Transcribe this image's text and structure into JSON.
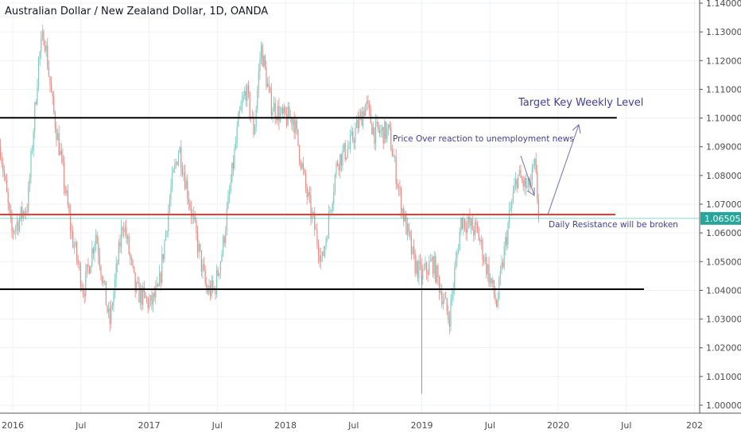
{
  "header": {
    "title": "Australian Dollar / New Zealand Dollar, 1D, OANDA"
  },
  "chart_data": {
    "type": "candlestick",
    "title": "Australian Dollar / New Zealand Dollar, 1D, OANDA",
    "ylim": [
      1.0,
      1.14
    ],
    "y_ticks": [
      "1.14000",
      "1.13000",
      "1.12000",
      "1.11000",
      "1.10000",
      "1.09000",
      "1.08000",
      "1.07000",
      "1.06000",
      "1.05000",
      "1.04000",
      "1.03000",
      "1.02000",
      "1.01000",
      "1.00000"
    ],
    "x_ticks": [
      {
        "label": "2016",
        "t": 2016.0
      },
      {
        "label": "Jul",
        "t": 2016.5
      },
      {
        "label": "2017",
        "t": 2017.0
      },
      {
        "label": "Jul",
        "t": 2017.5
      },
      {
        "label": "2018",
        "t": 2018.0
      },
      {
        "label": "Jul",
        "t": 2018.5
      },
      {
        "label": "2019",
        "t": 2019.0
      },
      {
        "label": "Jul",
        "t": 2019.5
      },
      {
        "label": "2020",
        "t": 2020.0
      },
      {
        "label": "Jul",
        "t": 2020.5
      },
      {
        "label": "202",
        "t": 2021.0
      }
    ],
    "current_price": "1.06505",
    "price_path": [
      [
        2015.91,
        1.09
      ],
      [
        2015.99,
        1.06
      ],
      [
        2016.11,
        1.07
      ],
      [
        2016.19,
        1.12
      ],
      [
        2016.23,
        1.13
      ],
      [
        2016.29,
        1.105
      ],
      [
        2016.34,
        1.09
      ],
      [
        2016.43,
        1.06
      ],
      [
        2016.52,
        1.04
      ],
      [
        2016.61,
        1.06
      ],
      [
        2016.71,
        1.028
      ],
      [
        2016.81,
        1.065
      ],
      [
        2016.9,
        1.04
      ],
      [
        2017.01,
        1.035
      ],
      [
        2017.07,
        1.04
      ],
      [
        2017.16,
        1.075
      ],
      [
        2017.22,
        1.09
      ],
      [
        2017.34,
        1.06
      ],
      [
        2017.42,
        1.04
      ],
      [
        2017.48,
        1.04
      ],
      [
        2017.54,
        1.055
      ],
      [
        2017.66,
        1.1
      ],
      [
        2017.71,
        1.11
      ],
      [
        2017.77,
        1.095
      ],
      [
        2017.82,
        1.125
      ],
      [
        2017.89,
        1.105
      ],
      [
        2017.98,
        1.1
      ],
      [
        2018.06,
        1.1
      ],
      [
        2018.15,
        1.075
      ],
      [
        2018.27,
        1.05
      ],
      [
        2018.38,
        1.085
      ],
      [
        2018.47,
        1.09
      ],
      [
        2018.59,
        1.105
      ],
      [
        2018.65,
        1.095
      ],
      [
        2018.76,
        1.095
      ],
      [
        2018.85,
        1.07
      ],
      [
        2018.94,
        1.05
      ],
      [
        2019.0,
        1.045
      ],
      [
        2019.08,
        1.05
      ],
      [
        2019.2,
        1.03
      ],
      [
        2019.29,
        1.065
      ],
      [
        2019.41,
        1.06
      ],
      [
        2019.55,
        1.035
      ],
      [
        2019.64,
        1.065
      ],
      [
        2019.7,
        1.08
      ],
      [
        2019.78,
        1.075
      ],
      [
        2019.83,
        1.083
      ],
      [
        2019.86,
        1.065
      ]
    ],
    "spike_low": {
      "t": 2019.0,
      "price": 1.004
    },
    "levels": [
      {
        "name": "weekly-resistance",
        "price": 1.1001,
        "t_end": 2020.43,
        "color": "#000000"
      },
      {
        "name": "daily-resistance",
        "price": 1.0664,
        "t_end": 2020.42,
        "color": "#f23b2f"
      },
      {
        "name": "support",
        "price": 1.0404,
        "t_end": 2020.63,
        "color": "#000000"
      }
    ],
    "annotations": {
      "target": "Target Key Weekly Level",
      "overreaction": "Price Over reaction to unemployment news",
      "daily": "Daily Resistance will be broken"
    },
    "colors": {
      "up": "#7fc8bf",
      "down": "#e88a86",
      "accent": "#26a69a",
      "annotation": "#3f3f9a"
    }
  }
}
